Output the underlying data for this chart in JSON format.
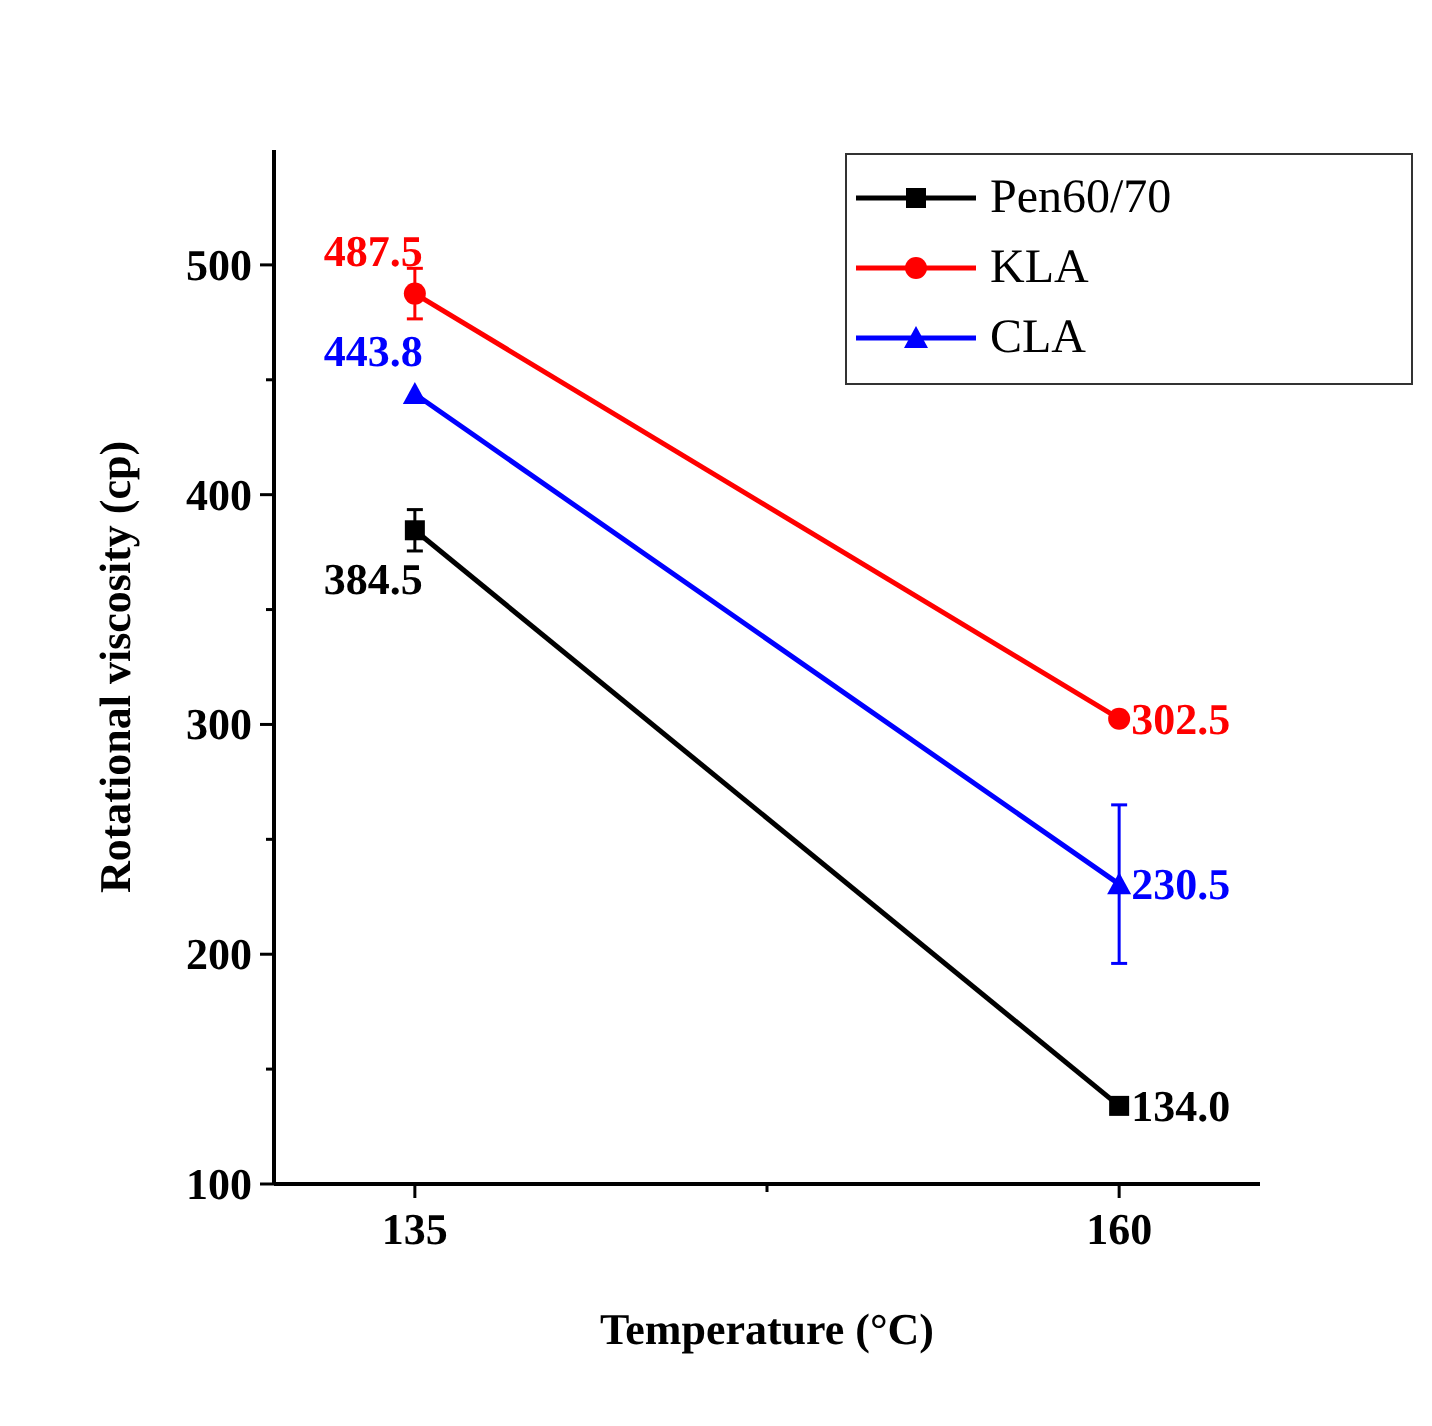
{
  "chart_data": {
    "type": "line",
    "xlabel": "Temperature (°C)",
    "ylabel": "Rotational viscosity (cp)",
    "x": [
      135,
      160
    ],
    "xlim": [
      130,
      165
    ],
    "xticks": [
      135,
      {
        "value": 147.5,
        "label": null
      },
      160
    ],
    "ylim": [
      100,
      550
    ],
    "yticks": [
      100,
      {
        "value": 150,
        "label": null
      },
      200,
      {
        "value": 250,
        "label": null
      },
      300,
      {
        "value": 350,
        "label": null
      },
      400,
      {
        "value": 450,
        "label": null
      },
      500
    ],
    "series": [
      {
        "name": "Pen60/70",
        "color": "#000000",
        "values": [
          384.5,
          134.0
        ],
        "value_labels": [
          "384.5",
          "134.0"
        ],
        "errors": [
          9,
          null
        ],
        "marker": "square"
      },
      {
        "name": "KLA",
        "color": "#ff0000",
        "values": [
          487.5,
          302.5
        ],
        "value_labels": [
          "487.5",
          "302.5"
        ],
        "errors": [
          11,
          null
        ],
        "marker": "circle"
      },
      {
        "name": "CLA",
        "color": "#0000ff",
        "values": [
          443.8,
          230.5
        ],
        "value_labels": [
          "443.8",
          "230.5"
        ],
        "errors": [
          null,
          34.5
        ],
        "marker": "triangle"
      }
    ],
    "legend": "top right",
    "grid": false,
    "line_style": "solid"
  }
}
